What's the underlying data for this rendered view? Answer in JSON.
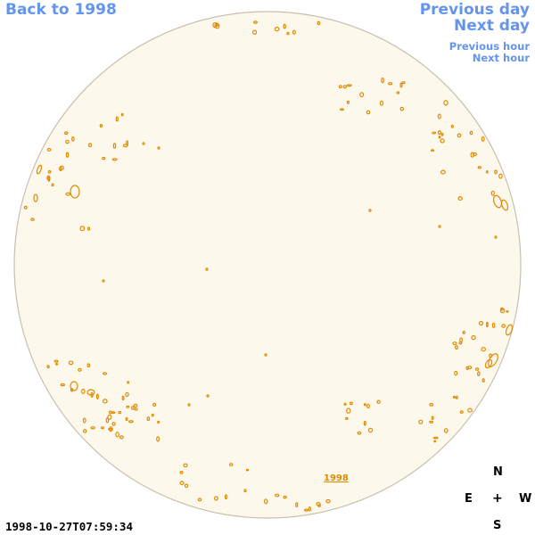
{
  "nav": {
    "back_label": "Back to 1998",
    "previous_day_label": "Previous day",
    "next_day_label": "Next day",
    "previous_hour_label": "Previous hour",
    "next_hour_label": "Next hour"
  },
  "compass": {
    "north": "N",
    "east": "E",
    "center": "+",
    "west": "W",
    "south": "S"
  },
  "timestamp": "1998-10-27T07:59:34",
  "year_link_label": "1998",
  "colors": {
    "link": "#6495ed",
    "disk_fill": "#fdf8ec",
    "disk_stroke": "#c9bfae",
    "feature": "#e08a00"
  }
}
